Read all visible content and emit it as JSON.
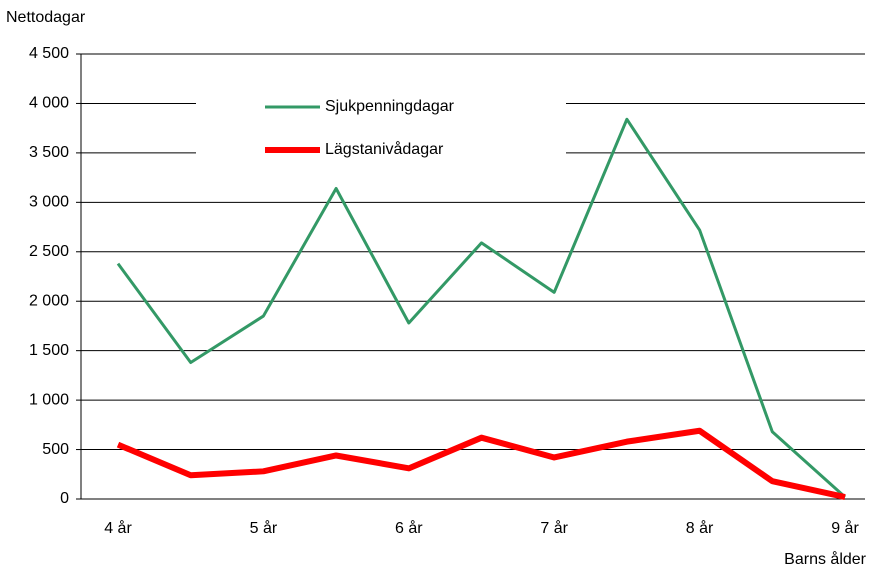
{
  "chart_data": {
    "type": "line",
    "y_label": "Nettodagar",
    "x_label": "Barns ålder",
    "categories": [
      "4 år",
      null,
      "5 år",
      null,
      "6 år",
      null,
      "7 år",
      null,
      "8 år",
      null,
      "9 år"
    ],
    "series": [
      {
        "name": "Sjukpenningdagar",
        "color": "#339966",
        "values": [
          2380,
          1380,
          1850,
          3140,
          1780,
          2590,
          2090,
          3840,
          2720,
          680,
          20
        ]
      },
      {
        "name": "Lägstanivådagar",
        "color": "#ff0000",
        "values": [
          550,
          240,
          280,
          440,
          310,
          620,
          420,
          580,
          690,
          180,
          20
        ]
      }
    ],
    "ylim": [
      0,
      4500
    ],
    "yticks": [
      0,
      {
        "value": 500,
        "label": "500"
      },
      {
        "value": 1000,
        "label": "1 000"
      },
      {
        "value": 1500,
        "label": "1 500"
      },
      {
        "value": 2000,
        "label": "2 000"
      },
      {
        "value": 2500,
        "label": "2 500"
      },
      {
        "value": 3000,
        "label": "3 000"
      },
      {
        "value": 3500,
        "label": "3 500"
      },
      {
        "value": 4000,
        "label": "4 000"
      },
      {
        "value": 4500,
        "label": "4 500"
      }
    ],
    "grid": true
  }
}
